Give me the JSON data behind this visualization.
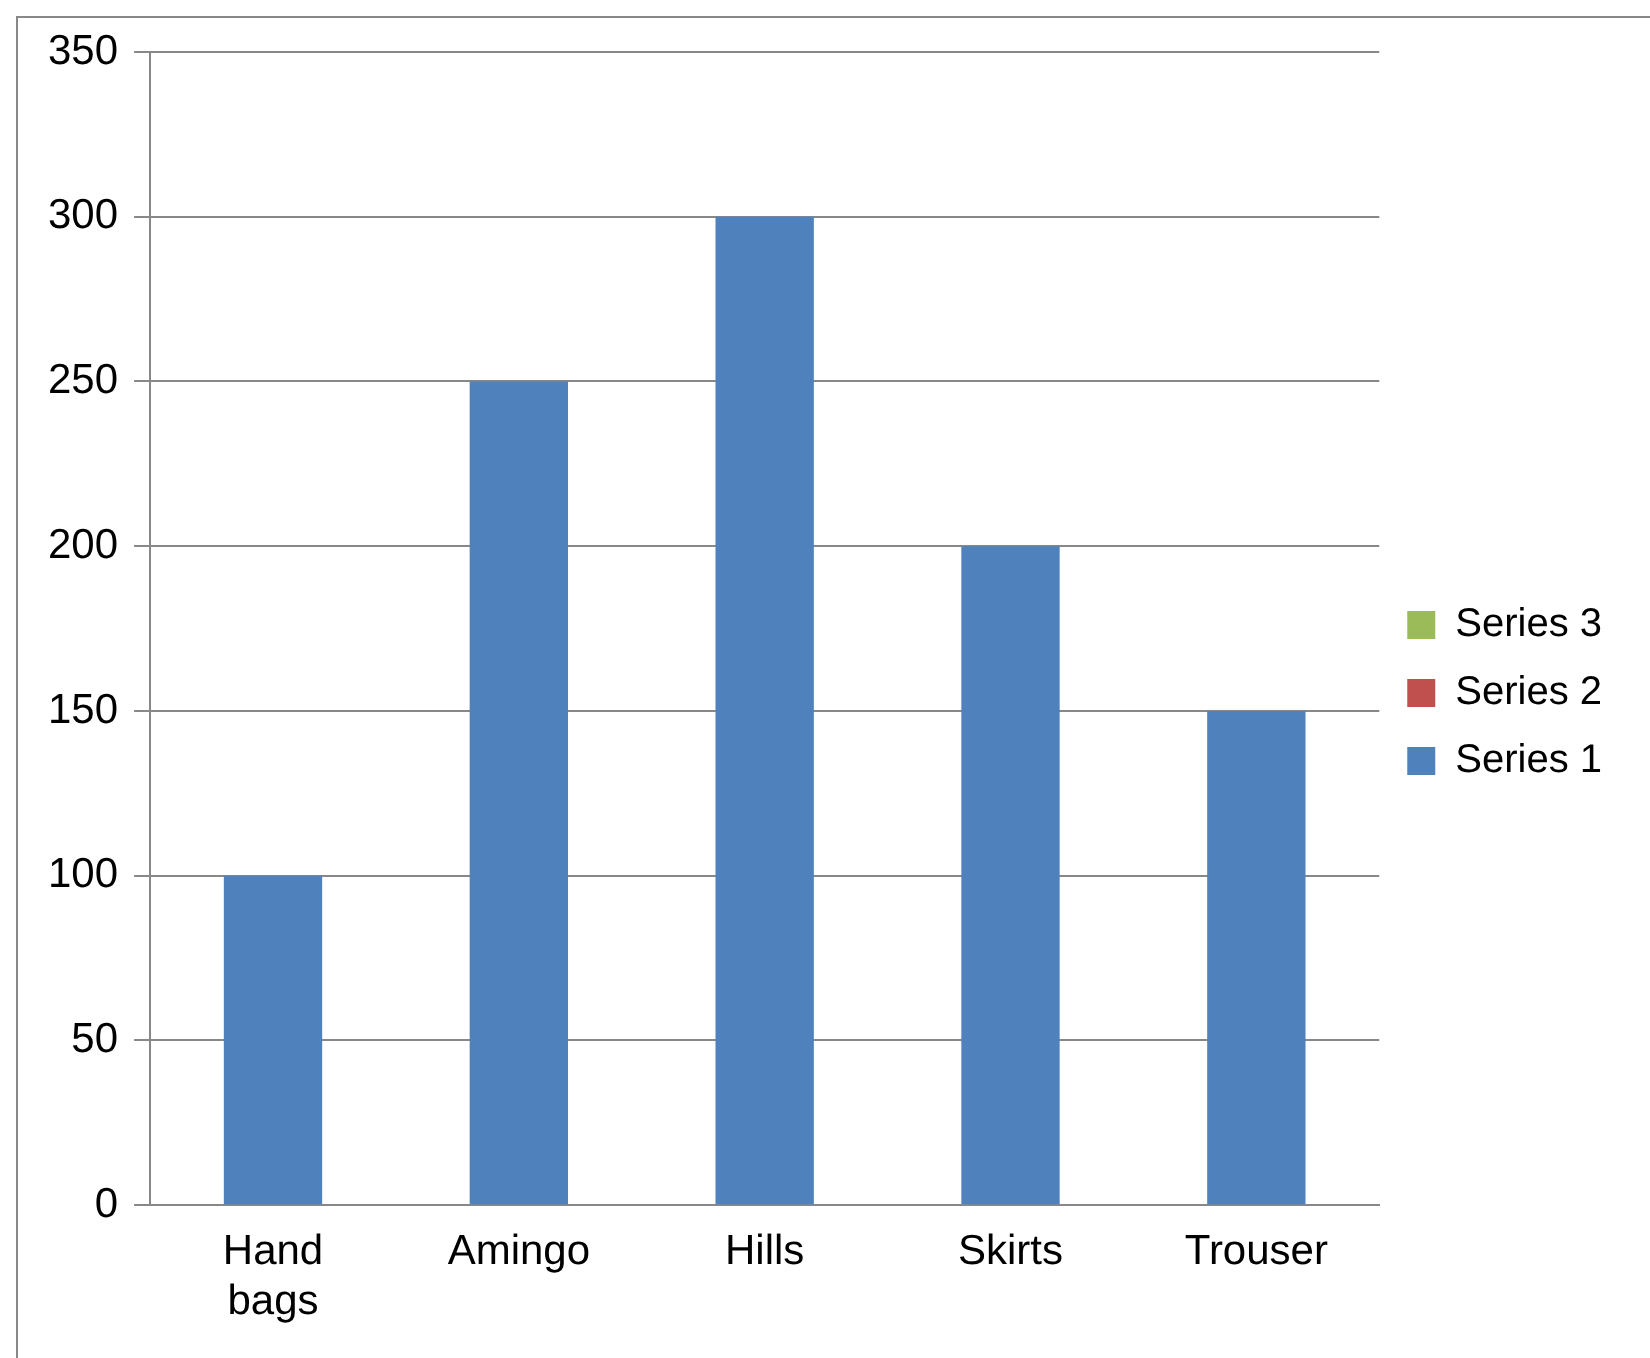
{
  "chart_data": {
    "type": "bar",
    "stacked": true,
    "categories": [
      "Hand bags",
      "Amingo",
      "Hills",
      "Skirts",
      "Trouser"
    ],
    "series": [
      {
        "name": "Series 1",
        "color": "#4f81bd",
        "values": [
          100,
          250,
          300,
          200,
          150
        ]
      },
      {
        "name": "Series 2",
        "color": "#c0504d",
        "values": [
          null,
          null,
          null,
          null,
          null
        ]
      },
      {
        "name": "Series 3",
        "color": "#9bbb59",
        "values": [
          null,
          null,
          null,
          null,
          null
        ]
      }
    ],
    "ylim": [
      0,
      350
    ],
    "yticks": [
      0,
      50,
      100,
      150,
      200,
      250,
      300,
      350
    ],
    "grid": "y",
    "legend": "right"
  }
}
